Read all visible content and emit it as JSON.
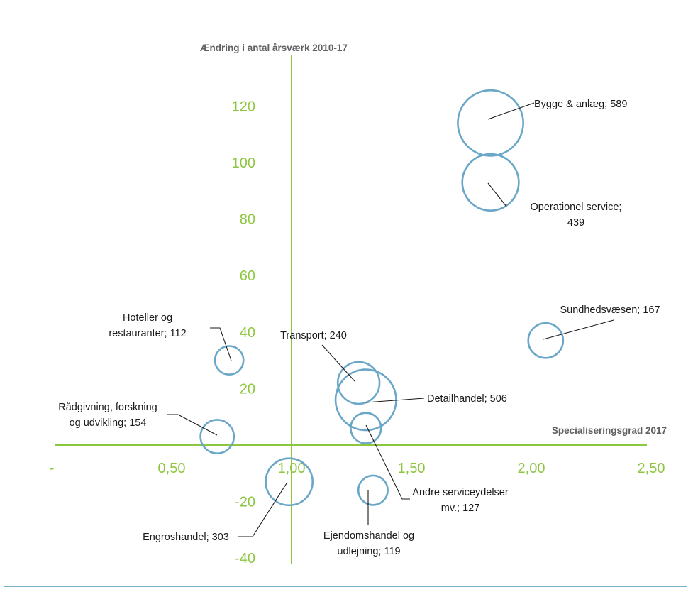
{
  "chart_data": {
    "type": "bubble",
    "xlabel": "Specialiseringsgrad 2017",
    "ylabel": "Ændring i antal årsværk 2010-17",
    "xlim": [
      0.0,
      2.5
    ],
    "ylim": [
      -40,
      120
    ],
    "x_ticks": [
      "-",
      "0,50",
      "1,00",
      "1,50",
      "2,00",
      "2,50"
    ],
    "y_ticks": [
      "120",
      "100",
      "80",
      "60",
      "40",
      "20",
      "-20",
      "-40"
    ],
    "grid": false,
    "colors": {
      "bubble": "#6aa6c8",
      "axis": "#8dc63f",
      "label": "#1a1a1a"
    },
    "points": [
      {
        "name": "Bygge & anlæg",
        "value": 589,
        "x": 1.83,
        "y": 114,
        "label_lines": [
          "Bygge & anlæg;  589"
        ]
      },
      {
        "name": "Operationel service",
        "value": 439,
        "x": 1.83,
        "y": 93,
        "label_lines": [
          "Operationel service;",
          "439"
        ]
      },
      {
        "name": "Sundhedsvæsen",
        "value": 167,
        "x": 2.06,
        "y": 37,
        "label_lines": [
          "Sundhedsvæsen;  167"
        ]
      },
      {
        "name": "Hoteller og restauranter",
        "value": 112,
        "x": 0.74,
        "y": 30,
        "label_lines": [
          "Hoteller og",
          "restauranter;  112"
        ]
      },
      {
        "name": "Transport",
        "value": 240,
        "x": 1.28,
        "y": 22,
        "label_lines": [
          "Transport;  240"
        ]
      },
      {
        "name": "Detailhandel",
        "value": 506,
        "x": 1.31,
        "y": 16,
        "label_lines": [
          "Detailhandel;  506"
        ]
      },
      {
        "name": "Andre serviceydelser mv.",
        "value": 127,
        "x": 1.31,
        "y": 6,
        "label_lines": [
          "Andre serviceydelser",
          "mv.;  127"
        ]
      },
      {
        "name": "Rådgivning, forskning og udvikling",
        "value": 154,
        "x": 0.69,
        "y": 3,
        "label_lines": [
          "Rådgivning, forskning",
          "og udvikling;  154"
        ]
      },
      {
        "name": "Engroshandel",
        "value": 303,
        "x": 0.99,
        "y": -13,
        "label_lines": [
          "Engroshandel;  303"
        ]
      },
      {
        "name": "Ejendomshandel og udlejning",
        "value": 119,
        "x": 1.34,
        "y": -16,
        "label_lines": [
          "Ejendomshandel og",
          "udlejning;  119"
        ]
      }
    ]
  }
}
